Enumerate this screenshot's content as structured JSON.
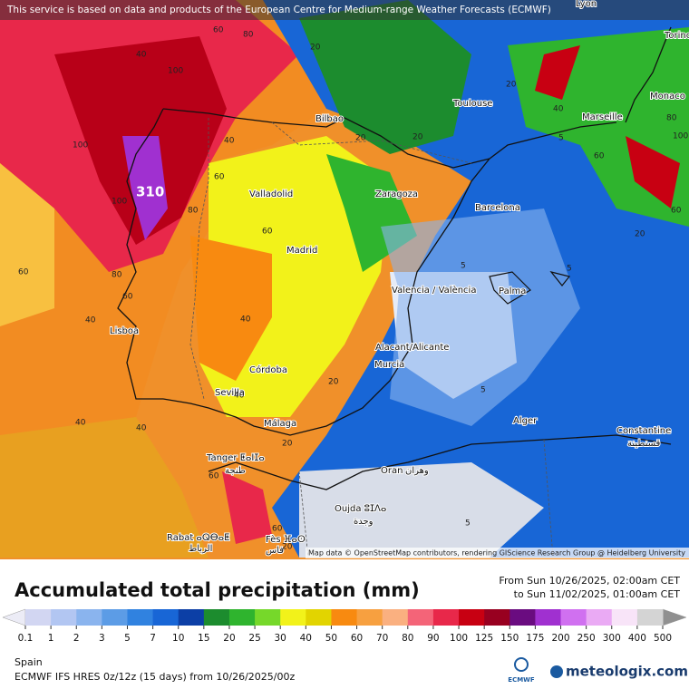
{
  "header": {
    "notice": "This service is based on data and products of the European Centre for Medium-range Weather Forecasts (ECMWF)"
  },
  "map": {
    "cities": [
      "Lyon",
      "Torino",
      "Monaco",
      "Bilbao",
      "Toulouse",
      "Marseille",
      "Valladolid",
      "Zaragoza",
      "Barcelona",
      "Madrid",
      "Valencia / València",
      "Palma",
      "Lisboa",
      "Alacant/Alicante",
      "Murcia",
      "Córdoba",
      "Sevilla",
      "Málaga",
      "Alger",
      "Constantine",
      "قسنطينة",
      "Tanger ⵟⴰⵏⵊⴰ",
      "طنجة",
      "Oran",
      "وهران",
      "Oujda ⵓⵊⴷⴰ",
      "وجدة",
      "Rabat ⴰⵕⴱⴰⵟ",
      "الرباط",
      "Fès ⴼⴰⵙ",
      "فاس"
    ],
    "max_label": "310",
    "contour_labels": [
      "60",
      "80",
      "40",
      "100",
      "100",
      "100",
      "80",
      "60",
      "40",
      "20",
      "20",
      "20",
      "40",
      "60",
      "80",
      "60",
      "40",
      "40",
      "20",
      "5",
      "5",
      "5",
      "20",
      "40",
      "60",
      "80",
      "100",
      "60",
      "20",
      "5",
      "20",
      "40",
      "40",
      "60",
      "5",
      "20",
      "60",
      "60"
    ],
    "attribution": "Map data © OpenStreetMap contributors, rendering GIScience Research Group @ Heidelberg University"
  },
  "panel": {
    "title": "Accumulated total precipitation (mm)",
    "date_from": "From Sun 10/26/2025, 02:00am CET",
    "date_to": "to Sun 11/02/2025, 01:00am CET",
    "legend": {
      "labels": [
        0.1,
        1,
        2,
        3,
        5,
        7,
        10,
        15,
        20,
        25,
        30,
        40,
        50,
        60,
        70,
        80,
        90,
        100,
        125,
        150,
        175,
        200,
        250,
        300,
        400,
        500
      ],
      "colors": [
        "#d2d6f2",
        "#b2c6f2",
        "#8ab4ee",
        "#5c9ce6",
        "#3082e0",
        "#1866d6",
        "#0c3fa6",
        "#1c8c2e",
        "#2fb42e",
        "#76d82a",
        "#f2f21a",
        "#e2d400",
        "#f88a10",
        "#f7a040",
        "#fab080",
        "#f46478",
        "#e8284a",
        "#c80012",
        "#980020",
        "#6a0c80",
        "#a030d0",
        "#d070f0",
        "#eaaaf4",
        "#f8e4f8",
        "#d4d4d4"
      ]
    },
    "region": "Spain",
    "model": "ECMWF IFS HRES 0z/12z (15 days) from  10/26/2025/00z",
    "logo_small": "ECMWF",
    "logo": "meteologix.com"
  }
}
